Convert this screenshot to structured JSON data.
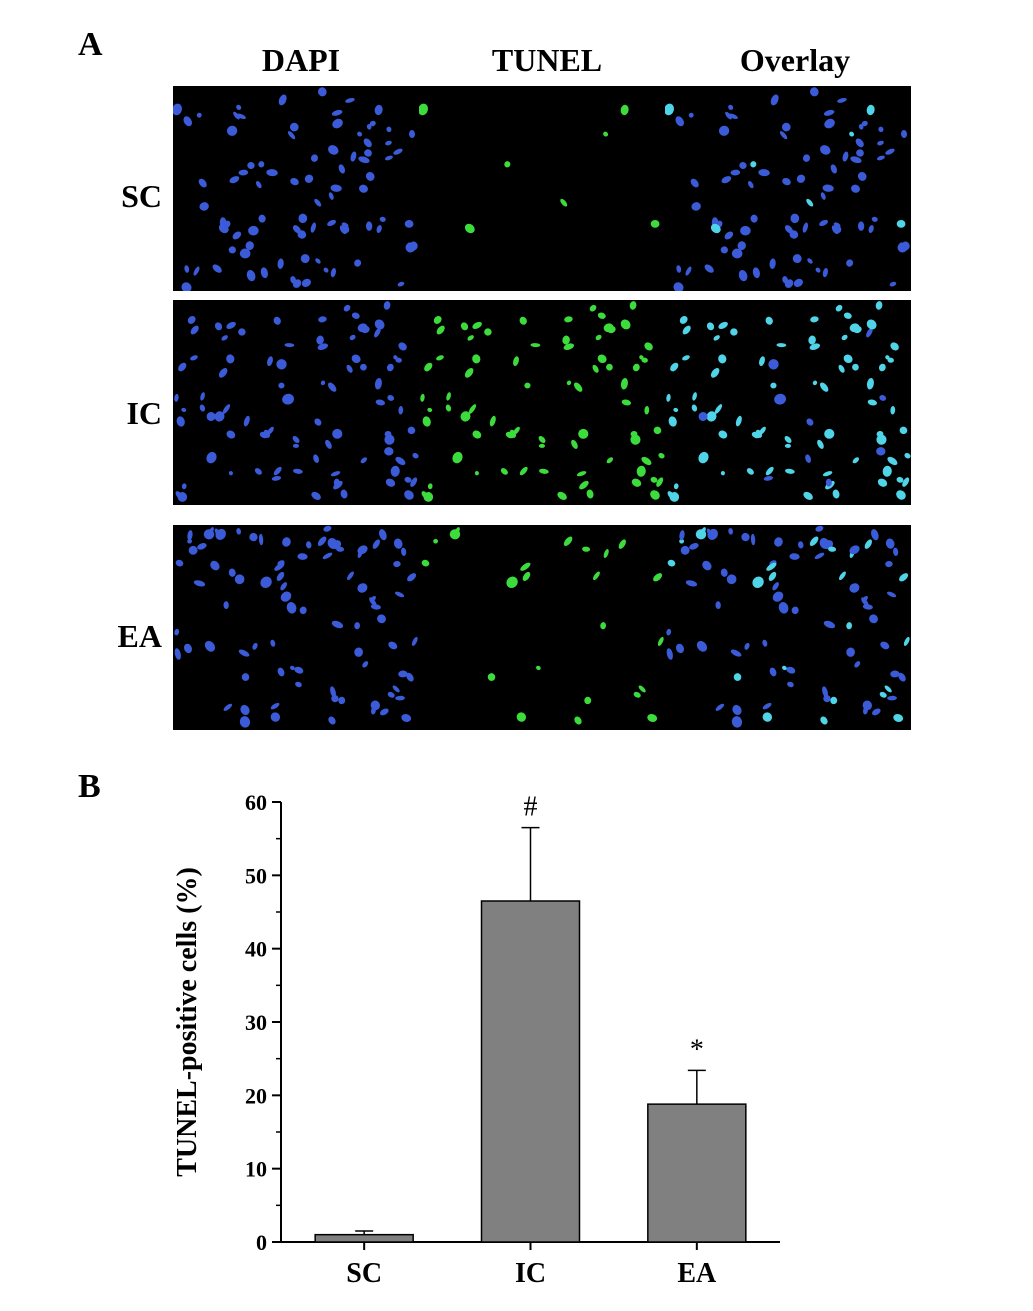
{
  "panel_a": {
    "letter": "A",
    "columns": [
      "DAPI",
      "TUNEL",
      "Overlay"
    ],
    "rows": [
      {
        "label": "SC",
        "tunel_level": 0.05
      },
      {
        "label": "IC",
        "tunel_level": 0.85
      },
      {
        "label": "EA",
        "tunel_level": 0.3
      }
    ],
    "colors": {
      "dapi": "#3b5bd9",
      "tunel": "#3ddc3d",
      "overlay_merge": "#4fd4e8",
      "background": "#000000"
    }
  },
  "panel_b": {
    "letter": "B"
  },
  "chart_data": {
    "type": "bar",
    "categories": [
      "SC",
      "IC",
      "EA"
    ],
    "values": [
      1.0,
      46.5,
      18.8
    ],
    "errors": [
      0.5,
      10.0,
      4.6
    ],
    "annotations": [
      "",
      "#",
      "*"
    ],
    "title": "",
    "xlabel": "",
    "ylabel": "TUNEL-positive cells (%)",
    "ylim": [
      0,
      60
    ],
    "yticks": [
      0,
      10,
      20,
      30,
      40,
      50,
      60
    ],
    "bar_color": "#808080",
    "grid": false
  }
}
